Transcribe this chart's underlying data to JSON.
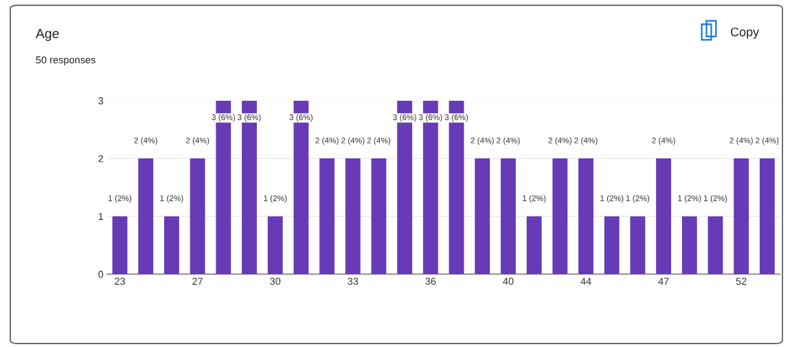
{
  "chart_data": {
    "type": "bar",
    "title": "Age",
    "subtitle": "50 responses",
    "annotations": [
      "Copy"
    ],
    "categories": [
      "23",
      null,
      null,
      "27",
      null,
      null,
      "30",
      null,
      null,
      "33",
      null,
      null,
      "36",
      null,
      null,
      "40",
      null,
      null,
      "44",
      null,
      null,
      "47",
      null,
      null,
      "52",
      null
    ],
    "values": [
      1,
      2,
      1,
      2,
      3,
      3,
      1,
      3,
      2,
      2,
      2,
      3,
      3,
      3,
      2,
      2,
      1,
      2,
      2,
      1,
      1,
      2,
      1,
      1,
      2,
      2
    ],
    "value_labels": [
      "1 (2%)",
      "2 (4%)",
      "1 (2%)",
      "2 (4%)",
      "3 (6%)",
      "3 (6%)",
      "1 (2%)",
      "3 (6%)",
      "2 (4%)",
      "2 (4%)",
      "2 (4%)",
      "3 (6%)",
      "3 (6%)",
      "3 (6%)",
      "2 (4%)",
      "2 (4%)",
      "1 (2%)",
      "2 (4%)",
      "2 (4%)",
      "1 (2%)",
      "1 (2%)",
      "2 (4%)",
      "1 (2%)",
      "1 (2%)",
      "2 (4%)",
      "2 (4%)"
    ],
    "color": "#673ab7",
    "ylim": [
      0,
      3
    ],
    "yticks": [
      0,
      1,
      2,
      3
    ],
    "grid": "y"
  }
}
